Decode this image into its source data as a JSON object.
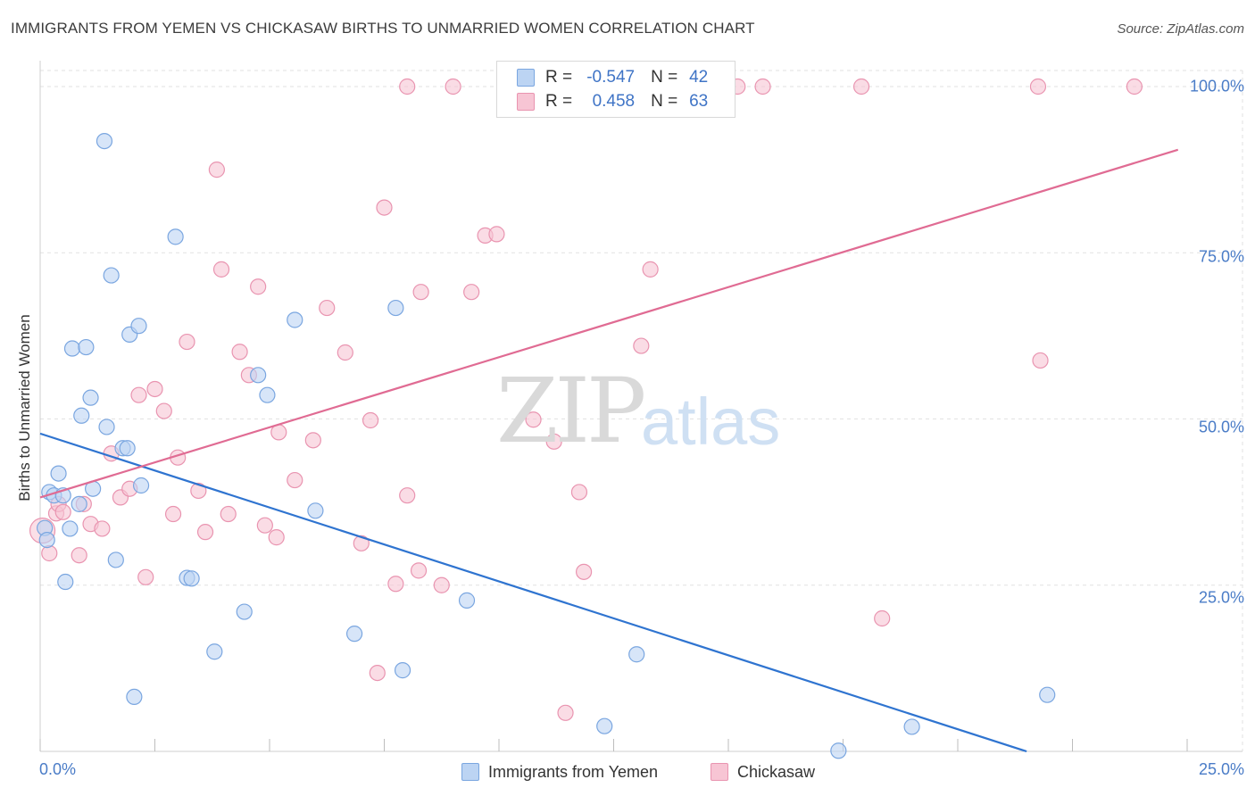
{
  "header": {
    "title": "IMMIGRANTS FROM YEMEN VS CHICKASAW BIRTHS TO UNMARRIED WOMEN CORRELATION CHART",
    "source": "Source: ZipAtlas.com"
  },
  "watermark": {
    "zip": "ZIP",
    "atlas": "atlas"
  },
  "legend": {
    "rows": [
      {
        "r_label": "R =",
        "r_value": "-0.547",
        "n_label": "N =",
        "n_value": "42"
      },
      {
        "r_label": "R =",
        "r_value": "0.458",
        "n_label": "N =",
        "n_value": "63"
      }
    ]
  },
  "bottom_legend": [
    "Immigrants from Yemen",
    "Chickasaw"
  ],
  "colors": {
    "yemen_fill": "#bcd4f3",
    "yemen_stroke": "#7aa6e0",
    "yemen_line": "#2f74d0",
    "chickasaw_fill": "#f7c5d4",
    "chickasaw_stroke": "#e994b0",
    "chickasaw_line": "#e06b93",
    "tick_text": "#4a7cc7",
    "grid": "#e2e2e2"
  },
  "chart_data": {
    "type": "scatter",
    "title": "IMMIGRANTS FROM YEMEN VS CHICKASAW BIRTHS TO UNMARRIED WOMEN CORRELATION CHART",
    "xlabel": "",
    "ylabel": "Births to Unmarried Women",
    "xlim": [
      0,
      25
    ],
    "ylim": [
      0,
      100
    ],
    "x_tick_labels": [
      "0.0%",
      "25.0%"
    ],
    "y_tick_labels": [
      "25.0%",
      "50.0%",
      "75.0%",
      "100.0%"
    ],
    "y_ticks": [
      25,
      50,
      75,
      100
    ],
    "grid": true,
    "legend_position": "top-center",
    "series": [
      {
        "name": "Immigrants from Yemen",
        "R": -0.547,
        "N": 42,
        "trend": {
          "x": [
            0.0,
            21.5
          ],
          "y": [
            47.8,
            0.0
          ]
        },
        "points": [
          [
            0.1,
            33.6
          ],
          [
            0.15,
            31.8
          ],
          [
            0.2,
            39.0
          ],
          [
            0.3,
            38.5
          ],
          [
            0.4,
            41.8
          ],
          [
            0.5,
            38.5
          ],
          [
            0.55,
            25.5
          ],
          [
            0.65,
            33.5
          ],
          [
            0.7,
            60.6
          ],
          [
            0.85,
            37.2
          ],
          [
            0.9,
            50.5
          ],
          [
            1.0,
            60.8
          ],
          [
            1.1,
            53.2
          ],
          [
            1.15,
            39.5
          ],
          [
            1.4,
            91.8
          ],
          [
            1.45,
            48.8
          ],
          [
            1.55,
            71.6
          ],
          [
            1.65,
            28.8
          ],
          [
            1.8,
            45.6
          ],
          [
            1.9,
            45.6
          ],
          [
            1.95,
            62.7
          ],
          [
            2.05,
            8.2
          ],
          [
            2.15,
            64.0
          ],
          [
            2.2,
            40.0
          ],
          [
            2.95,
            77.4
          ],
          [
            3.2,
            26.1
          ],
          [
            3.3,
            26.0
          ],
          [
            3.8,
            15.0
          ],
          [
            4.45,
            21.0
          ],
          [
            4.75,
            56.6
          ],
          [
            4.95,
            53.6
          ],
          [
            5.55,
            64.9
          ],
          [
            6.0,
            36.2
          ],
          [
            6.85,
            17.7
          ],
          [
            7.75,
            66.7
          ],
          [
            7.9,
            12.2
          ],
          [
            9.3,
            22.7
          ],
          [
            12.3,
            3.8
          ],
          [
            13.0,
            14.6
          ],
          [
            17.4,
            0.1
          ],
          [
            19.0,
            3.7
          ],
          [
            21.95,
            8.5
          ]
        ]
      },
      {
        "name": "Chickasaw",
        "R": 0.458,
        "N": 63,
        "trend": {
          "x": [
            0.0,
            24.8
          ],
          "y": [
            38.2,
            90.5
          ]
        },
        "points": [
          [
            0.05,
            33.2
          ],
          [
            0.2,
            29.8
          ],
          [
            0.35,
            35.8
          ],
          [
            0.4,
            37.2
          ],
          [
            0.5,
            36.0
          ],
          [
            0.85,
            29.5
          ],
          [
            0.95,
            37.2
          ],
          [
            1.1,
            34.2
          ],
          [
            1.35,
            33.5
          ],
          [
            1.55,
            44.8
          ],
          [
            1.75,
            38.2
          ],
          [
            1.95,
            39.5
          ],
          [
            2.15,
            53.6
          ],
          [
            2.3,
            26.2
          ],
          [
            2.5,
            54.5
          ],
          [
            2.7,
            51.2
          ],
          [
            2.9,
            35.7
          ],
          [
            3.0,
            44.2
          ],
          [
            3.2,
            61.6
          ],
          [
            3.45,
            39.2
          ],
          [
            3.6,
            33.0
          ],
          [
            3.85,
            87.5
          ],
          [
            3.95,
            72.5
          ],
          [
            4.1,
            35.7
          ],
          [
            4.35,
            60.1
          ],
          [
            4.55,
            56.6
          ],
          [
            4.75,
            69.9
          ],
          [
            4.9,
            34.0
          ],
          [
            5.15,
            32.2
          ],
          [
            5.2,
            48.0
          ],
          [
            5.55,
            40.8
          ],
          [
            5.95,
            46.8
          ],
          [
            6.25,
            66.7
          ],
          [
            6.65,
            60.0
          ],
          [
            7.0,
            31.3
          ],
          [
            7.2,
            49.8
          ],
          [
            7.35,
            11.8
          ],
          [
            7.5,
            81.8
          ],
          [
            7.75,
            25.2
          ],
          [
            8.0,
            38.5
          ],
          [
            8.0,
            100.0
          ],
          [
            8.25,
            27.2
          ],
          [
            8.3,
            69.1
          ],
          [
            8.75,
            25.0
          ],
          [
            9.0,
            100.0
          ],
          [
            9.4,
            69.1
          ],
          [
            9.7,
            77.6
          ],
          [
            9.95,
            77.8
          ],
          [
            10.75,
            49.9
          ],
          [
            11.2,
            46.6
          ],
          [
            11.45,
            5.8
          ],
          [
            11.75,
            39.0
          ],
          [
            11.85,
            27.0
          ],
          [
            13.1,
            61.0
          ],
          [
            13.3,
            72.5
          ],
          [
            13.6,
            100.0
          ],
          [
            15.2,
            100.0
          ],
          [
            15.75,
            100.0
          ],
          [
            17.9,
            100.0
          ],
          [
            18.35,
            20.0
          ],
          [
            21.8,
            58.8
          ],
          [
            21.75,
            100.0
          ],
          [
            23.85,
            100.0
          ]
        ]
      }
    ]
  }
}
